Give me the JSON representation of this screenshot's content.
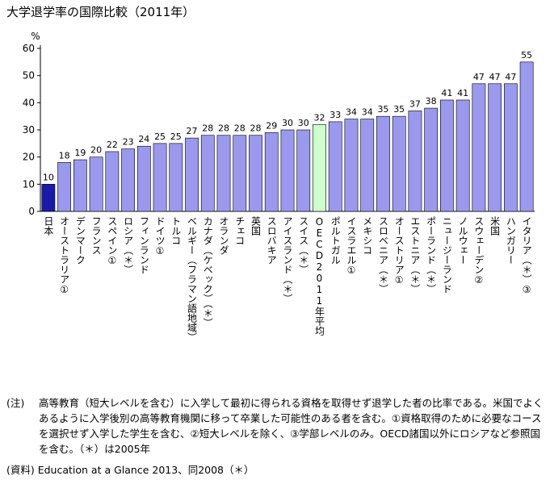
{
  "title": "大学退学率の国際比較（2011年）",
  "notes": {
    "tag": "(注)",
    "text": "高等教育（短大レベルを含む）に入学して最初に得られる資格を取得せず退学した者の比率である。米国でよくあるように入学後別の高等教育機関に移って卒業した可能性のある者を含む。①資格取得のために必要なコースを選択せず入学した学生を含む、②短大レベルを除く、③学部レベルのみ。OECD諸国以外にロシアなど参照国を含む。（＊）は2005年"
  },
  "source": "(資料) Education at a Glance 2013、同2008（＊）",
  "colors": {
    "bar": "#9999ee",
    "highlight_japan": "#1a1aa8",
    "highlight_oecd": "#ccffcc",
    "bar_stroke": "#000000"
  },
  "chart_data": {
    "type": "bar",
    "title": "大学退学率の国際比較（2011年）",
    "ylabel": "%",
    "ylim": [
      0,
      60
    ],
    "yticks": [
      0,
      10,
      20,
      30,
      40,
      50,
      60
    ],
    "grid": false,
    "categories": [
      "日本",
      "オーストラリア①",
      "デンマーク",
      "フランス",
      "スペイン①",
      "ロシア（＊）",
      "フィンランド",
      "ドイツ①",
      "トルコ",
      "ベルギー（フラマン語地域）",
      "カナダ（ケベック）（＊）",
      "オランダ",
      "チェコ",
      "英国",
      "スロバキア",
      "アイスランド（＊）",
      "スイス（＊）",
      "OECD2011年平均",
      "ポルトガル",
      "イスラエル①",
      "メキシコ",
      "スロベニア（＊）",
      "オーストリア①",
      "エストニア（＊）",
      "ポーランド（＊）",
      "ニュージーランド",
      "ノルウェー",
      "スウェーデン②",
      "米国",
      "ハンガリー",
      "イタリア（＊）③"
    ],
    "values": [
      10,
      18,
      19,
      20,
      22,
      23,
      24,
      25,
      25,
      27,
      28,
      28,
      28,
      28,
      29,
      30,
      30,
      32,
      33,
      34,
      34,
      35,
      35,
      37,
      38,
      41,
      41,
      47,
      47,
      47,
      55
    ],
    "highlights": {
      "japan": "日本",
      "oecd_average": "OECD2011年平均"
    }
  }
}
